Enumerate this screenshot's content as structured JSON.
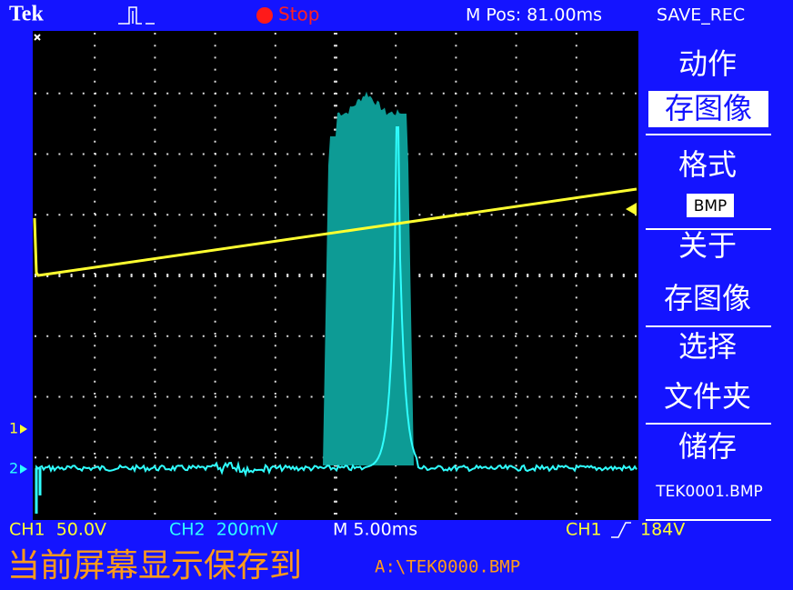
{
  "header": {
    "brand": "Tek",
    "status": "Stop",
    "position": "M Pos: 81.00ms",
    "mode": "SAVE_REC"
  },
  "markers": {
    "ch1": "1",
    "ch2": "2"
  },
  "menu": {
    "items": [
      {
        "label": "动作",
        "value": "存图像"
      },
      {
        "label": "格式",
        "value": "BMP"
      },
      {
        "label": "关于",
        "value": "存图像"
      },
      {
        "label": "选择",
        "value": "文件夹"
      },
      {
        "label": "储存",
        "value": "TEK0001.BMP"
      }
    ]
  },
  "footer": {
    "ch1": "CH1  50.0V",
    "ch2": "CH2  200mV",
    "timebase": "M 5.00ms",
    "trigger_source": "CH1",
    "trigger_level": "184V",
    "message": "当前屏幕显示保存到",
    "path": "A:\\TEK0000.BMP"
  }
}
